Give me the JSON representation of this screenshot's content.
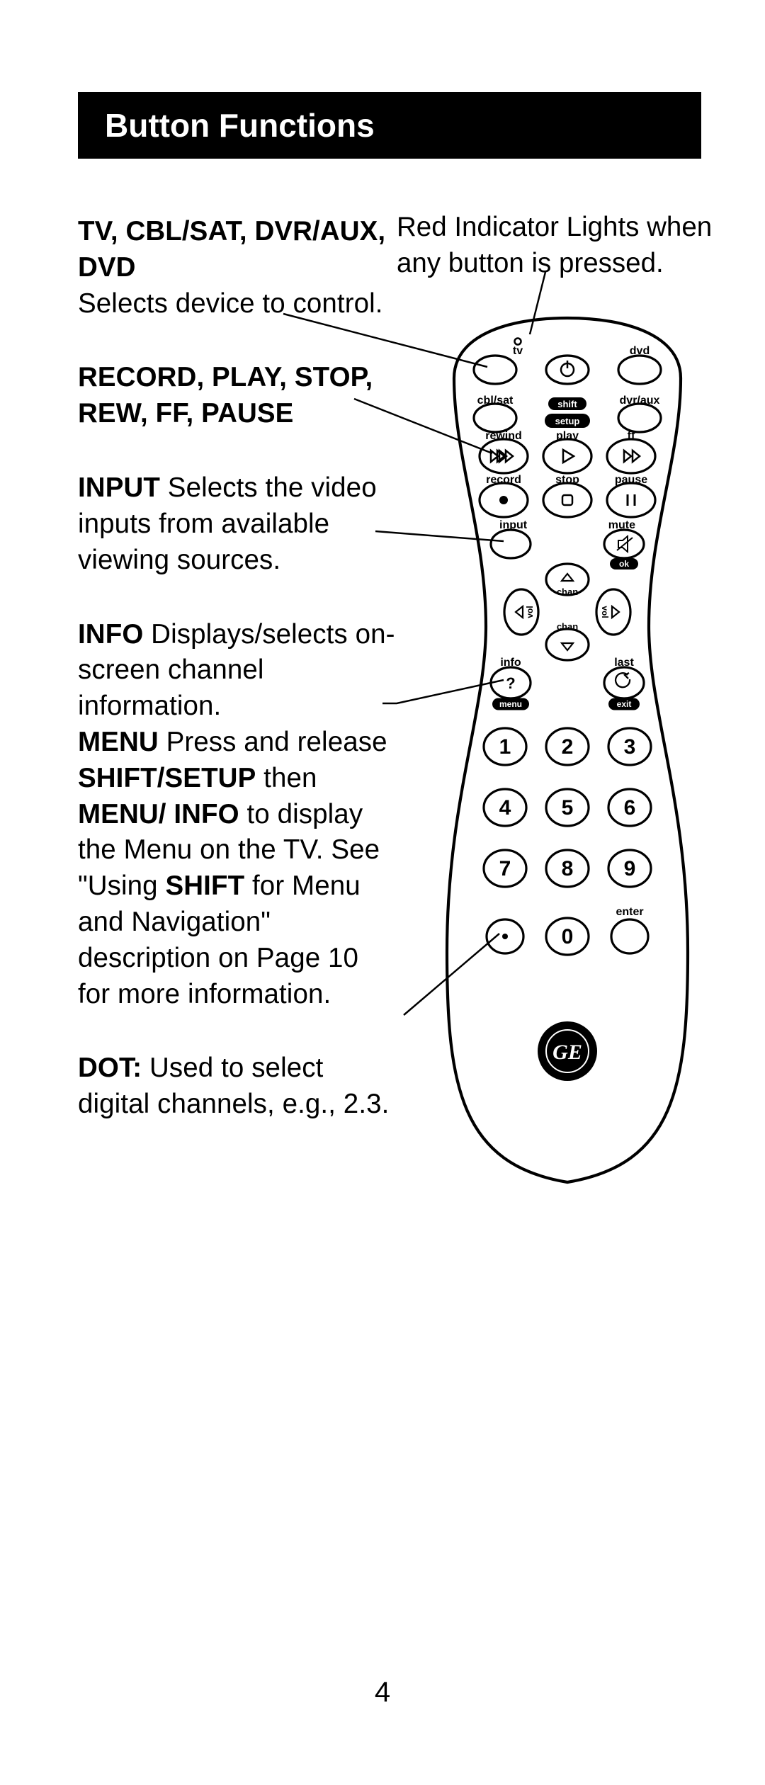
{
  "header": {
    "title": "Button Functions"
  },
  "indicator_note": "Red Indicator Lights when any button is pressed.",
  "left_column": {
    "device": {
      "heading": "TV, CBL/SAT, DVR/AUX, DVD",
      "body": "Selects device to control."
    },
    "transport": {
      "heading": "RECORD, PLAY, STOP, REW, FF, PAUSE"
    },
    "input": {
      "lead": "INPUT ",
      "body": "Selects the video inputs from available viewing sources."
    },
    "info_menu": {
      "info_lead": "INFO ",
      "info_body": "Displays/selects on-screen channel information.",
      "menu_lead": "MENU ",
      "menu_body1": "Press and release ",
      "shift_setup": "SHIFT/SETUP",
      "then": " then ",
      "menu_info": "MENU/ INFO",
      "menu_body2": " to display the Menu on the TV. See \"Using ",
      "shift": "SHIFT",
      "menu_body3": " for Menu and Navigation\" description on Page 10 for more information."
    },
    "dot": {
      "lead": "DOT:",
      "body": " Used to select digital channels, e.g., 2.3."
    }
  },
  "remote": {
    "labels": {
      "tv": "tv",
      "dvd": "dvd",
      "cblsat": "cbl/sat",
      "dvraux": "dvr/aux",
      "shift": "shift",
      "setup": "setup",
      "rewind": "rewind",
      "play": "play",
      "ff": "ff",
      "record": "record",
      "stop": "stop",
      "pause": "pause",
      "input": "input",
      "mute": "mute",
      "vol_left": "vol",
      "vol_right": "vol",
      "chan": "chan",
      "info": "info",
      "last": "last",
      "menu": "menu",
      "ok": "ok",
      "exit": "exit",
      "enter": "enter"
    },
    "keypad": [
      "1",
      "2",
      "3",
      "4",
      "5",
      "6",
      "7",
      "8",
      "9",
      "0"
    ],
    "colors": {
      "outline": "#000000",
      "fill": "#ffffff",
      "black_pill": "#000000",
      "text": "#000000",
      "white_text": "#ffffff"
    },
    "stroke_width": 3.2,
    "font": {
      "label_size": 16,
      "keypad_size": 30,
      "keypad_weight": "bold",
      "label_weight": "bold"
    }
  },
  "leader_lines": {
    "stroke": "#000000",
    "stroke_width": 2.5
  },
  "page_number": "4"
}
